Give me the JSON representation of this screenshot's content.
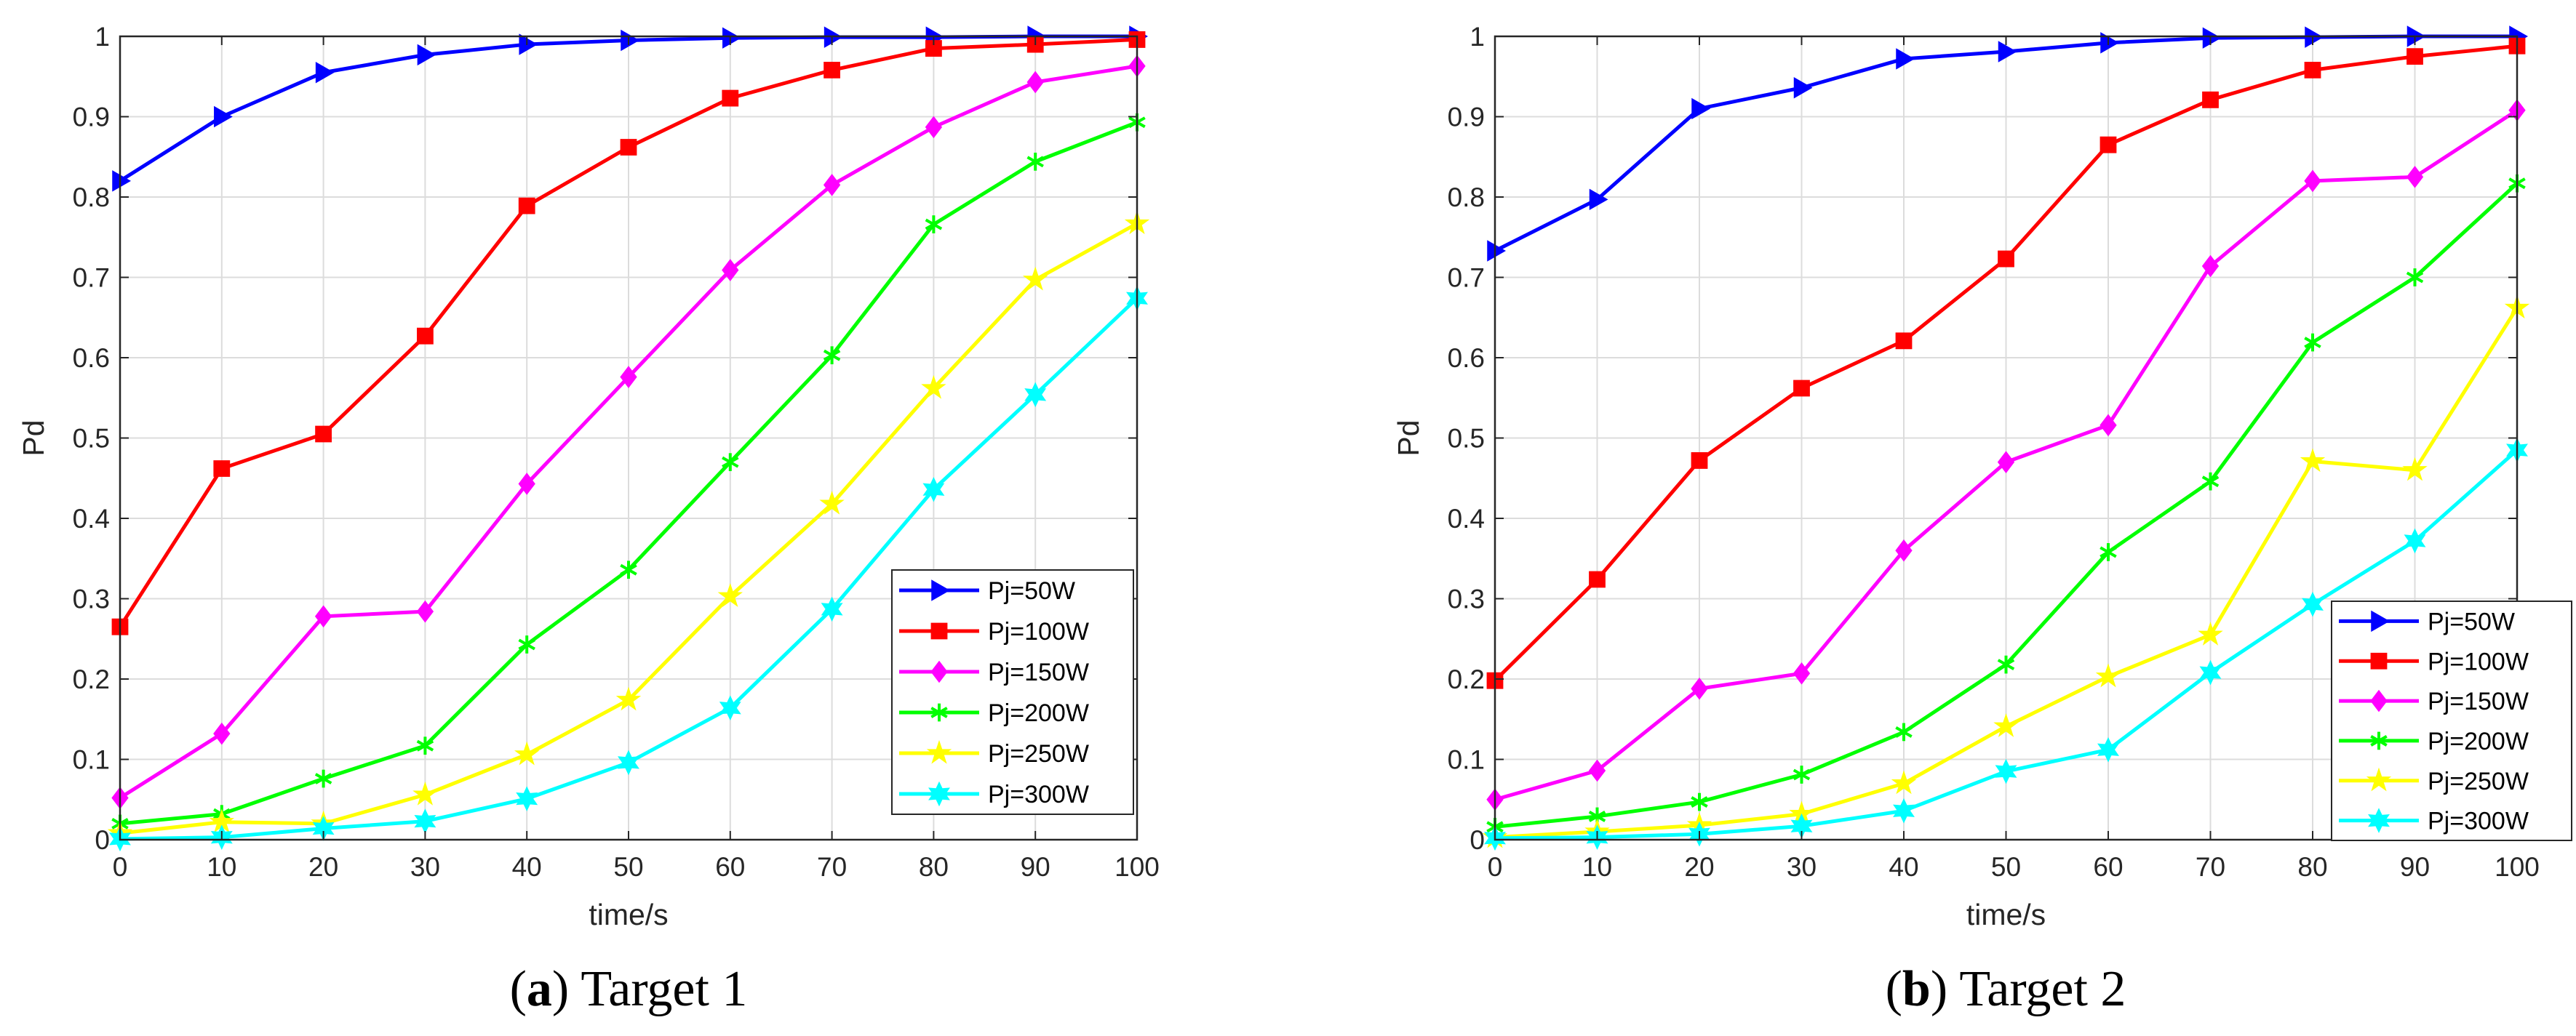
{
  "chart_data": [
    {
      "type": "line",
      "caption": {
        "letter": "a",
        "text": ") Target 1",
        "open": "("
      },
      "xlabel": "time/s",
      "ylabel": "Pd",
      "xlim": [
        0,
        100
      ],
      "ylim": [
        0,
        1
      ],
      "grid": true,
      "legend_position": "bottom-right",
      "x": [
        0,
        10,
        20,
        30,
        40,
        50,
        60,
        70,
        80,
        90,
        100
      ],
      "xticks": [
        "0",
        "10",
        "20",
        "30",
        "40",
        "50",
        "60",
        "70",
        "80",
        "90",
        "100"
      ],
      "yticks": [
        "0",
        "0.1",
        "0.2",
        "0.3",
        "0.4",
        "0.5",
        "0.6",
        "0.7",
        "0.8",
        "0.9",
        "1"
      ],
      "series": [
        {
          "name": "Pj=50W",
          "color": "#0000ff",
          "marker": "triangle-right",
          "values": [
            0.82,
            0.9,
            0.955,
            0.977,
            0.99,
            0.995,
            0.998,
            0.999,
            0.999,
            1.0,
            1.0
          ]
        },
        {
          "name": "Pj=100W",
          "color": "#ff0000",
          "marker": "square",
          "values": [
            0.265,
            0.462,
            0.505,
            0.627,
            0.789,
            0.862,
            0.923,
            0.958,
            0.985,
            0.99,
            0.996
          ]
        },
        {
          "name": "Pj=150W",
          "color": "#ff00ff",
          "marker": "diamond",
          "values": [
            0.052,
            0.132,
            0.278,
            0.284,
            0.443,
            0.576,
            0.709,
            0.815,
            0.887,
            0.943,
            0.963
          ]
        },
        {
          "name": "Pj=200W",
          "color": "#00ff00",
          "marker": "asterisk",
          "values": [
            0.02,
            0.032,
            0.076,
            0.117,
            0.243,
            0.336,
            0.47,
            0.603,
            0.766,
            0.844,
            0.893
          ]
        },
        {
          "name": "Pj=250W",
          "color": "#ffff00",
          "marker": "pentagram",
          "values": [
            0.008,
            0.022,
            0.02,
            0.056,
            0.106,
            0.174,
            0.303,
            0.418,
            0.562,
            0.697,
            0.767
          ]
        },
        {
          "name": "Pj=300W",
          "color": "#00ffff",
          "marker": "hexagram",
          "values": [
            0.001,
            0.003,
            0.014,
            0.023,
            0.051,
            0.096,
            0.164,
            0.287,
            0.436,
            0.554,
            0.674
          ]
        }
      ]
    },
    {
      "type": "line",
      "caption": {
        "letter": "b",
        "text": ") Target 2",
        "open": "("
      },
      "xlabel": "time/s",
      "ylabel": "Pd",
      "xlim": [
        0,
        100
      ],
      "ylim": [
        0,
        1
      ],
      "grid": true,
      "legend_position": "bottom-right",
      "x": [
        0,
        10,
        20,
        30,
        40,
        50,
        60,
        70,
        80,
        90,
        100
      ],
      "xticks": [
        "0",
        "10",
        "20",
        "30",
        "40",
        "50",
        "60",
        "70",
        "80",
        "90",
        "100"
      ],
      "yticks": [
        "0",
        "0.1",
        "0.2",
        "0.3",
        "0.4",
        "0.5",
        "0.6",
        "0.7",
        "0.8",
        "0.9",
        "1"
      ],
      "series": [
        {
          "name": "Pj=50W",
          "color": "#0000ff",
          "marker": "triangle-right",
          "values": [
            0.733,
            0.797,
            0.91,
            0.936,
            0.972,
            0.981,
            0.992,
            0.998,
            0.999,
            1.0,
            1.0
          ]
        },
        {
          "name": "Pj=100W",
          "color": "#ff0000",
          "marker": "square",
          "values": [
            0.198,
            0.324,
            0.472,
            0.562,
            0.621,
            0.723,
            0.865,
            0.921,
            0.958,
            0.975,
            0.988
          ]
        },
        {
          "name": "Pj=150W",
          "color": "#ff00ff",
          "marker": "diamond",
          "values": [
            0.05,
            0.086,
            0.188,
            0.207,
            0.36,
            0.47,
            0.516,
            0.714,
            0.82,
            0.825,
            0.908
          ]
        },
        {
          "name": "Pj=200W",
          "color": "#00ff00",
          "marker": "asterisk",
          "values": [
            0.016,
            0.029,
            0.047,
            0.081,
            0.134,
            0.218,
            0.358,
            0.446,
            0.619,
            0.7,
            0.817
          ]
        },
        {
          "name": "Pj=250W",
          "color": "#ffff00",
          "marker": "pentagram",
          "values": [
            0.003,
            0.01,
            0.018,
            0.032,
            0.07,
            0.141,
            0.203,
            0.255,
            0.471,
            0.46,
            0.662
          ]
        },
        {
          "name": "Pj=300W",
          "color": "#00ffff",
          "marker": "hexagram",
          "values": [
            0.002,
            0.003,
            0.007,
            0.017,
            0.036,
            0.085,
            0.112,
            0.208,
            0.293,
            0.372,
            0.485
          ]
        }
      ]
    }
  ]
}
